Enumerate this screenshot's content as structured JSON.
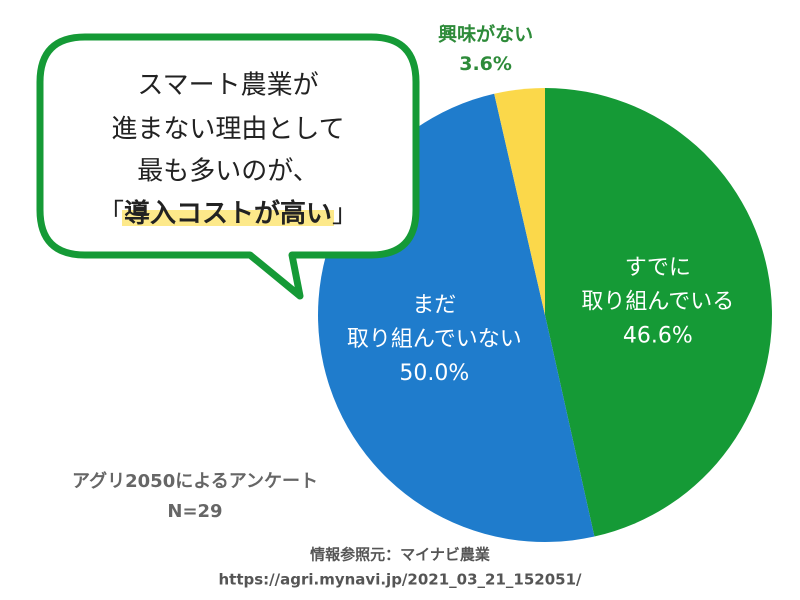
{
  "chart_data": {
    "type": "pie",
    "categories": [
      "すでに\n取り組んでいる",
      "まだ\n取り組んでいない",
      "興味がない"
    ],
    "values": [
      46.6,
      50.0,
      3.6
    ],
    "value_labels": [
      "46.6%",
      "50.0%",
      "3.6%"
    ],
    "colors": [
      "#159a36",
      "#1f7ccc",
      "#fbd84a"
    ]
  },
  "callout": {
    "lines": [
      "スマート農業が",
      "進まない理由として",
      "最も多いのが、"
    ],
    "last_line": {
      "prefix": "「",
      "emphasis": "導入コストが高い",
      "suffix": "」"
    }
  },
  "notes": {
    "survey": "アグリ2050によるアンケート",
    "sample": "N=29",
    "source": "情報参照元：マイナビ農業",
    "url": "https://agri.mynavi.jp/2021_03_21_152051/"
  }
}
